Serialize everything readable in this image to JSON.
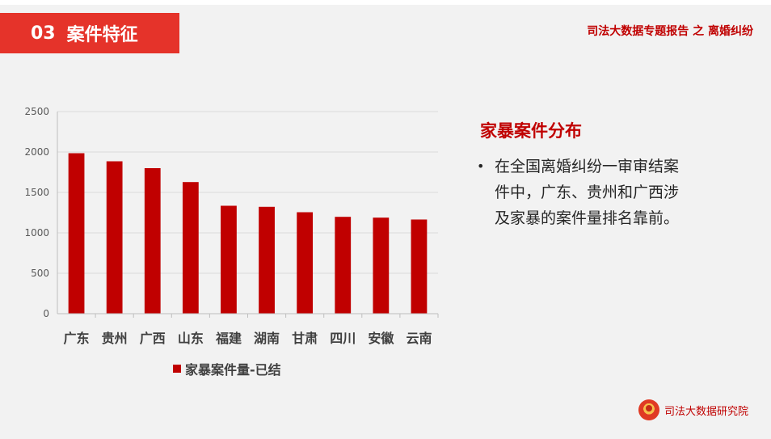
{
  "header": {
    "section_number": "03",
    "section_title": "案件特征",
    "report_title": "司法大数据专题报告 之 离婚纠纷"
  },
  "side": {
    "title": "家暴案件分布",
    "bullet_text": "在全国离婚纠纷一审审结案件中，广东、贵州和广西涉及家暴的案件量排名靠前。"
  },
  "footer": {
    "brand": "司法大数据研究院"
  },
  "colors": {
    "bar": "#c00000",
    "accent": "#e5332a",
    "title_red": "#c00000"
  },
  "chart_data": {
    "type": "bar",
    "categories": [
      "广东",
      "贵州",
      "广西",
      "山东",
      "福建",
      "湖南",
      "甘肃",
      "四川",
      "安徽",
      "云南"
    ],
    "series": [
      {
        "name": "家暴案件量-已结",
        "values": [
          1985,
          1885,
          1800,
          1628,
          1335,
          1322,
          1255,
          1198,
          1188,
          1165
        ]
      }
    ],
    "yticks": [
      0,
      500,
      1000,
      1500,
      2000,
      2500
    ],
    "ylim": [
      0,
      2500
    ],
    "grid": true,
    "legend_position": "bottom"
  }
}
